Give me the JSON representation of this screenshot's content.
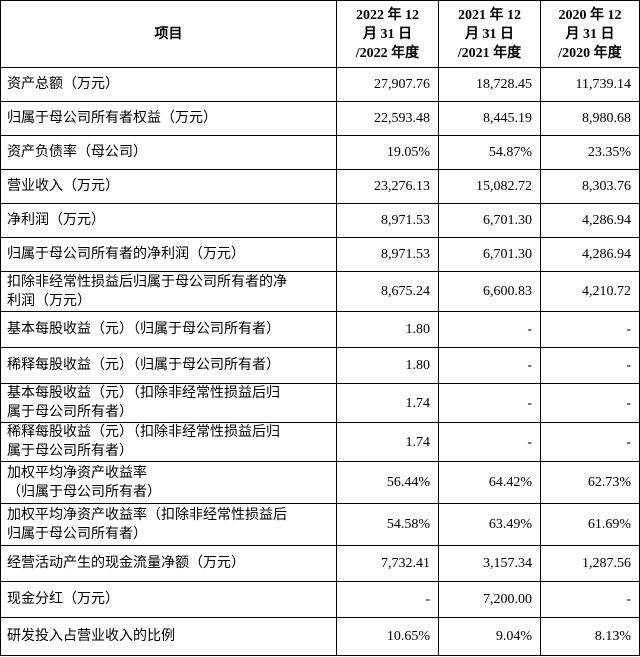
{
  "table": {
    "header": {
      "item": "项目",
      "columns": [
        [
          "2022 年 12",
          "月 31 日",
          "/2022 年度"
        ],
        [
          "2021 年 12",
          "月 31 日",
          "/2021 年度"
        ],
        [
          "2020 年 12",
          "月 31 日",
          "/2020 年度"
        ]
      ]
    },
    "rows": [
      {
        "label": [
          "资产总额（万元）"
        ],
        "values": [
          "27,907.76",
          "18,728.45",
          "11,739.14"
        ]
      },
      {
        "label": [
          "归属于母公司所有者权益（万元）"
        ],
        "values": [
          "22,593.48",
          "8,445.19",
          "8,980.68"
        ]
      },
      {
        "label": [
          "资产负债率（母公司）"
        ],
        "values": [
          "19.05%",
          "54.87%",
          "23.35%"
        ]
      },
      {
        "label": [
          "营业收入（万元）"
        ],
        "values": [
          "23,276.13",
          "15,082.72",
          "8,303.76"
        ]
      },
      {
        "label": [
          "净利润（万元）"
        ],
        "values": [
          "8,971.53",
          "6,701.30",
          "4,286.94"
        ]
      },
      {
        "label": [
          "归属于母公司所有者的净利润（万元）"
        ],
        "values": [
          "8,971.53",
          "6,701.30",
          "4,286.94"
        ]
      },
      {
        "label": [
          "扣除非经常性损益后归属于母公司所有者的净",
          "利润（万元）"
        ],
        "values": [
          "8,675.24",
          "6,600.83",
          "4,210.72"
        ]
      },
      {
        "label": [
          "基本每股收益（元）（归属于母公司所有者）"
        ],
        "values": [
          "1.80",
          "-",
          "-"
        ]
      },
      {
        "label": [
          "稀释每股收益（元）（归属于母公司所有者）"
        ],
        "values": [
          "1.80",
          "-",
          "-"
        ]
      },
      {
        "label": [
          "基本每股收益（元）（扣除非经常性损益后归",
          "属于母公司所有者）"
        ],
        "values": [
          "1.74",
          "-",
          "-"
        ]
      },
      {
        "label": [
          "稀释每股收益（元）（扣除非经常性损益后归",
          "属于母公司所有者）"
        ],
        "values": [
          "1.74",
          "-",
          "-"
        ]
      },
      {
        "label": [
          "加权平均净资产收益率",
          "（归属于母公司所有者）"
        ],
        "values": [
          "56.44%",
          "64.42%",
          "62.73%"
        ]
      },
      {
        "label": [
          "加权平均净资产收益率（扣除非经常性损益后",
          "归属于母公司所有者）"
        ],
        "values": [
          "54.58%",
          "63.49%",
          "61.69%"
        ]
      },
      {
        "label": [
          "经营活动产生的现金流量净额（万元）"
        ],
        "values": [
          "7,732.41",
          "3,157.34",
          "1,287.56"
        ]
      },
      {
        "label": [
          "现金分红（万元）"
        ],
        "values": [
          "-",
          "7,200.00",
          "-"
        ]
      },
      {
        "label": [
          "研发投入占营业收入的比例"
        ],
        "values": [
          "10.65%",
          "9.04%",
          "8.13%"
        ]
      }
    ]
  }
}
